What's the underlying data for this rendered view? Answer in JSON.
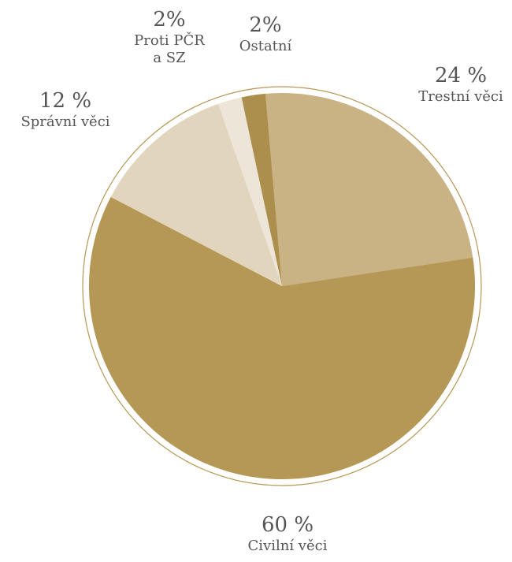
{
  "chart_data": {
    "type": "pie",
    "categories": [
      "Trestní věci",
      "Civilní věci",
      "Správní věci",
      "Proti PČR a SZ",
      "Ostatní"
    ],
    "values": [
      24,
      60,
      12,
      2,
      2
    ],
    "value_labels": [
      "24 %",
      "60 %",
      "12 %",
      "2%",
      "2%"
    ],
    "colors": [
      "#c9b283",
      "#b69856",
      "#e1d5bd",
      "#ede6d8",
      "#ad8f4d"
    ]
  }
}
